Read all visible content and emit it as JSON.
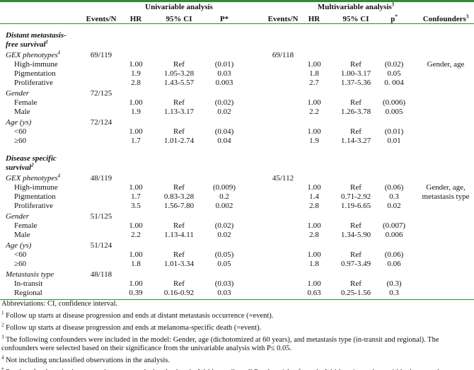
{
  "header": {
    "univariable": "Univariable analysis",
    "multivariable": "Multivariable analysis",
    "multivariable_sup": "3",
    "columns": [
      "Events/N",
      "HR",
      "95% CI",
      "P*",
      "Events/N",
      "HR",
      "95% CI",
      "p",
      "Confounders"
    ],
    "p_multi_sup": "*",
    "confounders_sup": "3"
  },
  "sections": [
    {
      "title_line1": "Distant metastasis-",
      "title_line2": "free survival",
      "title_sup": "1",
      "groups": [
        {
          "label": "GEX phenotypes",
          "sup": "4",
          "uni_events": "69/119",
          "multi_events": "69/118",
          "confounders": [
            "Gender, age"
          ],
          "rows": [
            [
              "High-immune",
              "1.00",
              "Ref",
              "(0.01)",
              "1.00",
              "Ref",
              "(0.02)"
            ],
            [
              "Pigmentation",
              "1.9",
              "1.05-3.28",
              "0.03",
              "1.8",
              "1.00-3.17",
              "0.05"
            ],
            [
              "Proliferative",
              "2.8",
              "1.43-5.57",
              "0.003",
              "2.7",
              "1.37-5.36",
              "0. 004"
            ]
          ]
        },
        {
          "label": "Gender",
          "sup": "",
          "uni_events": "72/125",
          "multi_events": "",
          "confounders": [],
          "rows": [
            [
              "Female",
              "1.00",
              "Ref",
              "(0.02)",
              "1.00",
              "Ref",
              "(0.006)"
            ],
            [
              "Male",
              "1.9",
              "1.13-3.17",
              "0.02",
              "2.2",
              "1.26-3.78",
              "0.005"
            ]
          ]
        },
        {
          "label": "Age (ys)",
          "sup": "",
          "uni_events": "72/124",
          "multi_events": "",
          "confounders": [],
          "rows": [
            [
              "<60",
              "1.00",
              "Ref",
              "(0.04)",
              "1.00",
              "Ref",
              "(0.01)"
            ],
            [
              "≥60",
              "1.7",
              "1.01-2.74",
              "0.04",
              "1.9",
              "1.14-3.27",
              "0.01"
            ]
          ]
        }
      ]
    },
    {
      "title_line1": "Disease specific",
      "title_line2": "survival",
      "title_sup": "2",
      "groups": [
        {
          "label": "GEX phenotypes",
          "sup": "4",
          "uni_events": "48/119",
          "multi_events": "45/112",
          "confounders": [
            "Gender, age,",
            "metastasis type"
          ],
          "rows": [
            [
              "High-immune",
              "1.00",
              "Ref",
              "(0.009)",
              "1.00",
              "Ref",
              "(0.06)"
            ],
            [
              "Pigmentation",
              "1.7",
              "0.83-3.28",
              "0.2",
              "1.4",
              "0.71-2.92",
              "0.3"
            ],
            [
              "Proliferative",
              "3.5",
              "1.56-7.80",
              "0.002",
              "2.8",
              "1.19-6.65",
              "0.02"
            ]
          ]
        },
        {
          "label": "Gender",
          "sup": "",
          "uni_events": "51/125",
          "multi_events": "",
          "confounders": [],
          "rows": [
            [
              "Female",
              "1.00",
              "Ref",
              "(0.02)",
              "1.00",
              "Ref",
              "(0.007)"
            ],
            [
              "Male",
              "2.2",
              "1.13-4.11",
              "0.02",
              "2.8",
              "1.34-5.90",
              "0.006"
            ]
          ]
        },
        {
          "label": "Age (ys)",
          "sup": "",
          "uni_events": "51/124",
          "multi_events": "",
          "confounders": [],
          "rows": [
            [
              "<60",
              "1.00",
              "Ref",
              "(0.05)",
              "1.00",
              "Ref",
              "(0.06)"
            ],
            [
              "≥60",
              "1.8",
              "1.01-3.34",
              "0.05",
              "1.8",
              "0.97-3.49",
              "0.06"
            ]
          ]
        },
        {
          "label": "Metastasis type",
          "sup": "",
          "uni_events": "48/118",
          "multi_events": "",
          "confounders": [],
          "rows": [
            [
              "In-transit",
              "1.00",
              "Ref",
              "(0.03)",
              "1.00",
              "Ref",
              "(0.3)"
            ],
            [
              "Regional",
              "0.39",
              "0.16-0.92",
              "0.03",
              "0.63",
              "0.25-1.56",
              "0.3"
            ]
          ]
        }
      ]
    }
  ],
  "footnotes": [
    {
      "sup": "",
      "text": "Abbreviations: CI, confidence interval."
    },
    {
      "sup": "1",
      "text": "Follow up starts at disease progression and ends at distant metastasis occurrence (=event)."
    },
    {
      "sup": "2",
      "text": "Follow up starts at disease progression and ends at melanoma-specific death (=event)."
    },
    {
      "sup": "3",
      "text": "The following confounders were included in the model: Gender, age (dichotomized at 60 years), and metastasis type (in-transit and regional). The confounders were selected based on their significance from the univariable analysis with P≤ 0.05."
    },
    {
      "sup": "4",
      "text": "Not including unclassified observations in the analysis."
    },
    {
      "sup": "*",
      "text": "P-values for the pairwise comparisons were calculated using the Wald-test. Overall P-values (also from the Wald-test) are given within the parentheses."
    }
  ]
}
